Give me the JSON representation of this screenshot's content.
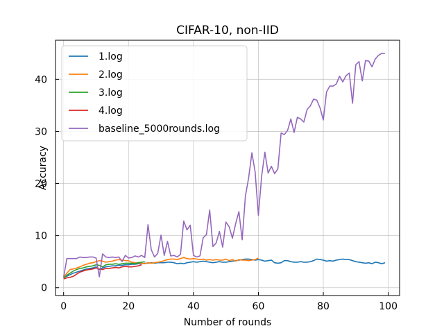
{
  "chart_data": {
    "type": "line",
    "title": "CIFAR-10, non-IID",
    "xlabel": "Number of rounds",
    "ylabel": "Accuracy",
    "xlim": [
      -2.5,
      103.5
    ],
    "ylim": [
      -1.5,
      47.5
    ],
    "xticks": [
      0,
      20,
      40,
      60,
      80,
      100
    ],
    "yticks": [
      0,
      10,
      20,
      30,
      40
    ],
    "grid": true,
    "legend_position": "top-left",
    "series": [
      {
        "name": "1.log",
        "color": "#1f77b4",
        "x": [
          0,
          1,
          2,
          3,
          4,
          5,
          6,
          7,
          8,
          9,
          10,
          11,
          12,
          13,
          14,
          15,
          16,
          17,
          18,
          19,
          20,
          21,
          22,
          23,
          24,
          25,
          26,
          27,
          28,
          29,
          30,
          31,
          32,
          33,
          34,
          35,
          36,
          37,
          38,
          39,
          40,
          41,
          42,
          43,
          44,
          45,
          46,
          47,
          48,
          49,
          50,
          51,
          52,
          53,
          54,
          55,
          56,
          57,
          58,
          59,
          60,
          61,
          62,
          63,
          64,
          65,
          66,
          67,
          68,
          69,
          70,
          71,
          72,
          73,
          74,
          75,
          76,
          77,
          78,
          79,
          80,
          81,
          82,
          83,
          84,
          85,
          86,
          87,
          88,
          89,
          90,
          91,
          92,
          93,
          94,
          95,
          96,
          97,
          98,
          99
        ],
        "y": [
          2.0,
          2.2,
          2.5,
          2.8,
          3.0,
          3.2,
          3.4,
          3.6,
          3.7,
          3.8,
          4.0,
          3.5,
          3.8,
          4.0,
          4.1,
          4.2,
          4.2,
          4.3,
          4.3,
          4.4,
          4.4,
          4.5,
          4.5,
          4.6,
          4.6,
          4.7,
          4.7,
          4.8,
          4.7,
          4.8,
          4.8,
          4.8,
          4.9,
          4.9,
          4.8,
          4.6,
          4.7,
          4.6,
          4.8,
          4.9,
          5.0,
          4.9,
          5.0,
          5.1,
          5.0,
          4.9,
          4.8,
          4.9,
          5.0,
          4.9,
          4.9,
          5.0,
          5.1,
          5.2,
          5.3,
          5.4,
          5.5,
          5.5,
          5.4,
          5.3,
          5.4,
          5.3,
          5.1,
          5.2,
          5.3,
          4.8,
          4.7,
          4.8,
          5.2,
          5.2,
          5.0,
          4.9,
          4.9,
          5.0,
          4.9,
          4.9,
          5.0,
          5.2,
          5.5,
          5.4,
          5.3,
          5.1,
          5.2,
          5.1,
          5.3,
          5.4,
          5.5,
          5.4,
          5.4,
          5.2,
          5.0,
          4.9,
          4.8,
          4.7,
          4.8,
          4.6,
          4.9,
          4.8,
          4.6,
          4.8
        ]
      },
      {
        "name": "2.log",
        "color": "#ff7f0e",
        "x": [
          0,
          1,
          2,
          3,
          4,
          5,
          6,
          7,
          8,
          9,
          10,
          11,
          12,
          13,
          14,
          15,
          16,
          17,
          18,
          19,
          20,
          21,
          22,
          23,
          24,
          25,
          26,
          27,
          28,
          29,
          30,
          31,
          32,
          33,
          34,
          35,
          36,
          37,
          38,
          39,
          40,
          41,
          42,
          43,
          44,
          45,
          46,
          47,
          48,
          49,
          50,
          51,
          52,
          53,
          54,
          55,
          56,
          57,
          58,
          59,
          60
        ],
        "y": [
          2.0,
          2.8,
          3.5,
          3.6,
          3.8,
          4.0,
          4.3,
          4.5,
          4.7,
          4.8,
          5.0,
          5.2,
          5.1,
          4.9,
          5.0,
          5.1,
          5.3,
          5.4,
          5.3,
          5.2,
          5.2,
          4.9,
          4.8,
          4.8,
          4.7,
          4.6,
          4.8,
          4.7,
          4.8,
          4.9,
          5.0,
          5.2,
          5.4,
          5.5,
          5.5,
          5.4,
          5.6,
          5.8,
          5.6,
          5.5,
          5.6,
          5.5,
          5.4,
          5.5,
          5.3,
          5.4,
          5.3,
          5.4,
          5.3,
          5.3,
          5.5,
          5.2,
          5.4,
          5.1,
          5.4,
          5.3,
          5.3,
          5.2,
          5.3,
          5.4,
          5.7
        ]
      },
      {
        "name": "3.log",
        "color": "#2ca02c",
        "x": [
          0,
          1,
          2,
          3,
          4,
          5,
          6,
          7,
          8,
          9,
          10,
          11,
          12,
          13,
          14,
          15,
          16,
          17,
          18,
          19,
          20,
          21,
          22,
          23,
          24,
          25
        ],
        "y": [
          1.8,
          2.4,
          2.8,
          3.2,
          3.5,
          3.7,
          3.8,
          4.0,
          4.1,
          4.2,
          4.4,
          4.3,
          4.0,
          4.4,
          4.5,
          4.5,
          4.6,
          4.5,
          4.6,
          4.7,
          4.7,
          4.7,
          4.6,
          4.8,
          4.9,
          5.0
        ]
      },
      {
        "name": "4.log",
        "color": "#d62728",
        "x": [
          0,
          1,
          2,
          3,
          4,
          5,
          6,
          7,
          8,
          9,
          10,
          11,
          12,
          13,
          14,
          15,
          16,
          17,
          18,
          19,
          20,
          21,
          22,
          23,
          24
        ],
        "y": [
          1.7,
          1.9,
          2.0,
          2.2,
          2.6,
          3.0,
          3.2,
          3.4,
          3.5,
          3.6,
          3.8,
          3.6,
          3.5,
          3.7,
          3.7,
          3.8,
          3.9,
          3.8,
          4.0,
          4.1,
          4.0,
          4.0,
          4.1,
          4.2,
          4.4
        ]
      },
      {
        "name": "baseline_5000rounds.log",
        "color": "#9467bd",
        "x": [
          0,
          1,
          2,
          3,
          4,
          5,
          6,
          7,
          8,
          9,
          10,
          11,
          12,
          13,
          14,
          15,
          16,
          17,
          18,
          19,
          20,
          21,
          22,
          23,
          24,
          25,
          26,
          27,
          28,
          29,
          30,
          31,
          32,
          33,
          34,
          35,
          36,
          37,
          38,
          39,
          40,
          41,
          42,
          43,
          44,
          45,
          46,
          47,
          48,
          49,
          50,
          51,
          52,
          53,
          54,
          55,
          56,
          57,
          58,
          59,
          60,
          61,
          62,
          63,
          64,
          65,
          66,
          67,
          68,
          69,
          70,
          71,
          72,
          73,
          74,
          75,
          76,
          77,
          78,
          79,
          80,
          81,
          82,
          83,
          84,
          85,
          86,
          87,
          88,
          89,
          90,
          91,
          92,
          93,
          94,
          95,
          96,
          97,
          98,
          99
        ],
        "y": [
          2.0,
          5.6,
          5.6,
          5.6,
          5.6,
          5.9,
          5.8,
          5.8,
          5.9,
          5.9,
          5.7,
          2.1,
          6.5,
          5.9,
          5.8,
          5.9,
          5.8,
          5.9,
          5.0,
          6.2,
          5.7,
          5.8,
          6.1,
          5.9,
          6.2,
          5.8,
          12.1,
          7.3,
          5.9,
          6.6,
          10.1,
          6.2,
          8.9,
          6.1,
          6.2,
          5.9,
          6.4,
          12.8,
          11.1,
          12.0,
          6.2,
          5.9,
          6.1,
          9.6,
          10.2,
          14.9,
          7.9,
          8.6,
          10.8,
          7.8,
          12.6,
          11.7,
          9.5,
          12.3,
          14.6,
          9.2,
          17.6,
          21.1,
          25.9,
          22.2,
          13.9,
          21.4,
          26.0,
          22.0,
          23.3,
          21.9,
          22.8,
          29.7,
          29.4,
          30.2,
          32.4,
          29.8,
          32.7,
          32.4,
          31.8,
          34.2,
          34.9,
          36.2,
          36.0,
          34.5,
          32.2,
          37.6,
          38.7,
          38.7,
          39.1,
          40.6,
          39.5,
          40.7,
          41.2,
          35.4,
          42.8,
          43.4,
          39.7,
          43.6,
          43.5,
          42.4,
          43.9,
          44.6,
          45.0,
          45.0
        ]
      }
    ]
  }
}
